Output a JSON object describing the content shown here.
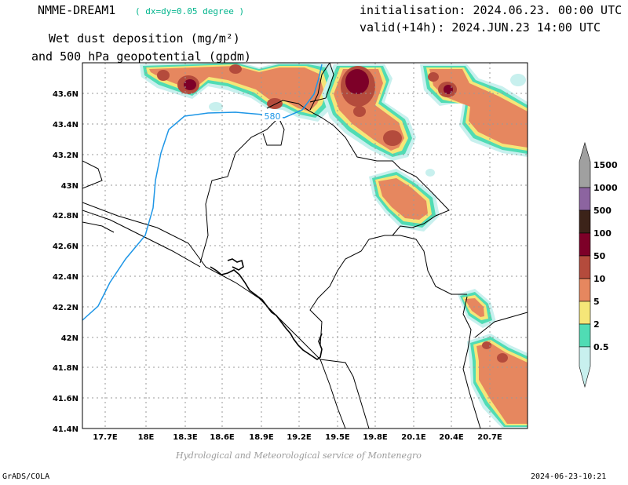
{
  "header": {
    "model_name": "NMME-DREAM1",
    "resolution": "( dx=dy=0.05 degree )",
    "initialisation": "initialisation: 2024.06.23. 00:00 UTC",
    "valid": "valid(+14h): 2024.JUN.23 14:00 UTC",
    "field_line1": "Wet dust deposition (mg/m²)",
    "field_line2": "and 500 hPa geopotential (gpdm)"
  },
  "map": {
    "lat_labels": [
      "43.6N",
      "43.4N",
      "43.2N",
      "43N",
      "42.8N",
      "42.6N",
      "42.4N",
      "42.2N",
      "42N",
      "41.8N",
      "41.6N",
      "41.4N"
    ],
    "lon_labels": [
      "17.7E",
      "18E",
      "18.3E",
      "18.6E",
      "18.9E",
      "19.2E",
      "19.5E",
      "19.8E",
      "20.1E",
      "20.4E",
      "20.7E"
    ],
    "contour_label": "580",
    "contour_color": "#1e96e6"
  },
  "colorbar": {
    "levels": [
      "0.5",
      "2",
      "5",
      "10",
      "50",
      "100",
      "500",
      "1000",
      "1500"
    ],
    "colors": [
      "#c8f0ee",
      "#50dcb4",
      "#f5e678",
      "#e6875f",
      "#b44b3c",
      "#7d0028",
      "#3c2319",
      "#8c64a0",
      "#a0a0a0"
    ]
  },
  "footer": {
    "credit": "Hydrological and Meteorological service of Montenegro",
    "software": "GrADS/COLA",
    "timestamp": "2024-06-23-10:21"
  }
}
